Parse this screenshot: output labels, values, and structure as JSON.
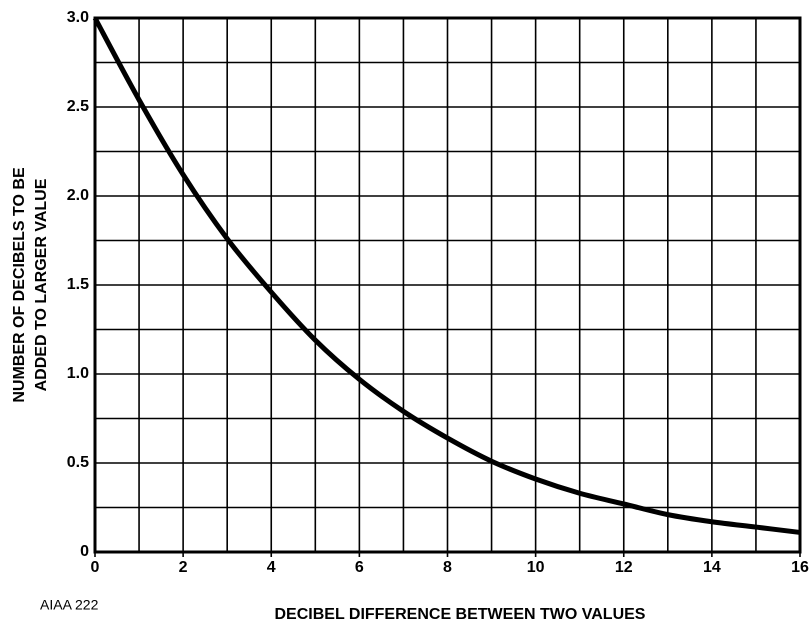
{
  "chart_data": {
    "type": "line",
    "ylabel": [
      "NUMBER OF DECIBELS TO BE",
      "ADDED TO LARGER VALUE"
    ],
    "xlabel": "DECIBEL DIFFERENCE BETWEEN TWO VALUES",
    "footnote": "AIAA 222",
    "x": [
      0,
      1,
      2,
      3,
      4,
      5,
      6,
      7,
      8,
      9,
      10,
      11,
      12,
      13,
      14,
      15,
      16
    ],
    "series": [
      {
        "color": "#000000",
        "values": [
          3.0,
          2.54,
          2.12,
          1.76,
          1.46,
          1.19,
          0.97,
          0.79,
          0.64,
          0.51,
          0.41,
          0.33,
          0.27,
          0.21,
          0.17,
          0.14,
          0.11
        ]
      }
    ],
    "xlim": [
      0,
      16
    ],
    "ylim": [
      0,
      3
    ],
    "xticks": [
      0,
      2,
      4,
      6,
      8,
      10,
      12,
      14,
      16
    ],
    "yticks": [
      0,
      0.5,
      {
        "value": 1,
        "label": "1.0"
      },
      1.5,
      {
        "value": 2,
        "label": "2.0"
      },
      2.5,
      {
        "value": 3,
        "label": "3.0"
      }
    ],
    "minor_xticks": [
      1,
      3,
      5,
      7,
      9,
      11,
      13,
      15
    ],
    "minor_yticks": [
      0.25,
      0.75,
      1.25,
      1.75,
      2.25,
      2.75
    ],
    "grid": true
  }
}
